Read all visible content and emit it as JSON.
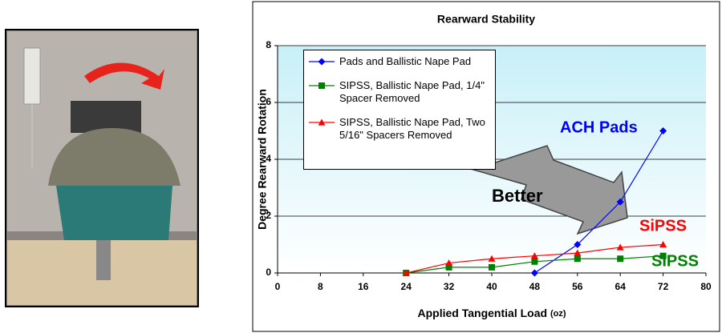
{
  "chart_data": {
    "type": "line",
    "title": "Rearward Stability",
    "x_label": "Applied Tangential Load",
    "x_label_unit": "(oz)",
    "y_label": "Degree Rearward Rotation",
    "x": [
      24,
      32,
      40,
      48,
      56,
      64,
      72
    ],
    "series": [
      {
        "name": "Pads and Ballistic Nape Pad",
        "color": "#0000ff",
        "marker": "diamond",
        "values": [
          null,
          null,
          null,
          0,
          1,
          2.5,
          5
        ]
      },
      {
        "name": "SIPSS, Ballistic Nape Pad, 1/4\" Spacer Removed",
        "color": "#008000",
        "marker": "square",
        "values": [
          0,
          0.2,
          0.2,
          0.4,
          0.5,
          0.5,
          0.6
        ]
      },
      {
        "name": "SIPSS, Ballistic Nape Pad, Two 5/16\" Spacers Removed",
        "color": "#ff0000",
        "marker": "triangle",
        "values": [
          0,
          0.35,
          0.5,
          0.6,
          0.7,
          0.9,
          1.0
        ]
      }
    ],
    "xlim": [
      0,
      80
    ],
    "xticks": [
      0,
      8,
      16,
      24,
      32,
      40,
      48,
      56,
      64,
      72,
      80
    ],
    "ylim": [
      0,
      8
    ],
    "yticks": [
      0,
      2,
      4,
      6,
      8
    ],
    "grid": true,
    "annotations": [
      {
        "text": "ACH Pads",
        "color": "#0000ff"
      },
      {
        "text": "Better",
        "color": "#000000"
      },
      {
        "text": "SiPSS",
        "color": "#ff0000"
      },
      {
        "text": "SIPSS",
        "color": "#008000"
      }
    ]
  }
}
